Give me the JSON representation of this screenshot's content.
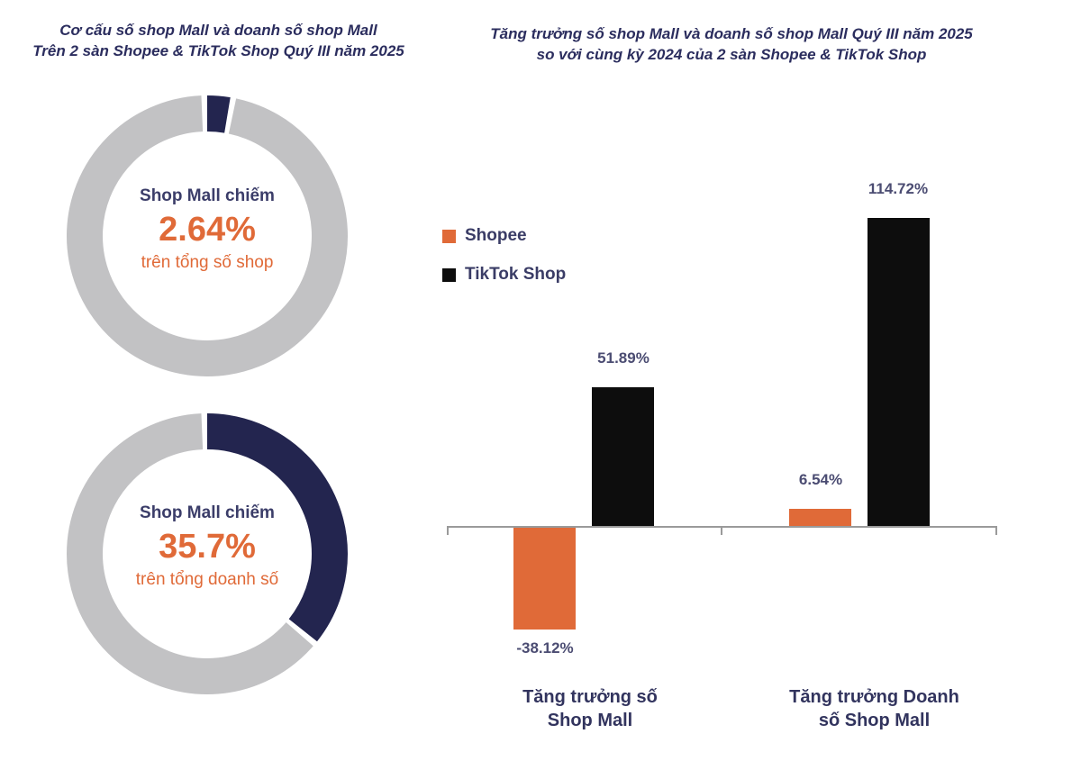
{
  "colors": {
    "accent_orange": "#E06A38",
    "navy_slice": "#23254F",
    "gray_ring": "#C2C2C4",
    "bar_black": "#0D0D0D",
    "title_navy": "#2B2D5E",
    "axis_gray": "#9A9A9A"
  },
  "left_chart": {
    "title": [
      "Cơ cấu số shop Mall và doanh số shop Mall",
      "Trên 2 sàn Shopee & TikTok Shop Quý III năm 2025"
    ]
  },
  "right_chart": {
    "title": [
      "Tăng trưởng số shop Mall và doanh số shop Mall Quý III năm 2025",
      "so với cùng kỳ 2024 của 2 sàn Shopee & TikTok Shop"
    ],
    "legend": [
      {
        "name": "Shopee",
        "color": "#E06A38"
      },
      {
        "name": "TikTok Shop",
        "color": "#0D0D0D"
      }
    ]
  },
  "chart_data": [
    {
      "type": "pie",
      "subtype": "donut",
      "title": "Cơ cấu số shop Mall và doanh số shop Mall Trên 2 sàn Shopee & TikTok Shop Quý III năm 2025",
      "center_label_top": "Shop Mall chiếm",
      "center_value": "2.64%",
      "center_label_bottom": "trên tổng số shop",
      "slices": [
        {
          "name": "Shop Mall",
          "value": 2.64,
          "color": "#23254F"
        },
        {
          "name": "remainder",
          "value": 97.36,
          "color": "#C2C2C4"
        }
      ],
      "start_angle_deg": 0,
      "direction": "clockwise"
    },
    {
      "type": "pie",
      "subtype": "donut",
      "title": "Cơ cấu doanh số shop Mall trên 2 sàn Shopee & TikTok Shop Quý III năm 2025",
      "center_label_top": "Shop Mall chiếm",
      "center_value": "35.7%",
      "center_label_bottom": "trên tổng doanh số",
      "slices": [
        {
          "name": "Shop Mall",
          "value": 35.7,
          "color": "#23254F"
        },
        {
          "name": "remainder",
          "value": 64.3,
          "color": "#C2C2C4"
        }
      ],
      "start_angle_deg": 0,
      "direction": "clockwise"
    },
    {
      "type": "bar",
      "title": "Tăng trưởng số shop Mall và doanh số shop Mall Quý III năm 2025 so với cùng kỳ 2024 của 2 sàn Shopee & TikTok Shop",
      "categories": [
        "Tăng trưởng số Shop Mall",
        "Tăng trưởng Doanh số Shop Mall"
      ],
      "cat_lines": [
        [
          "Tăng trưởng số",
          "Shop Mall"
        ],
        [
          "Tăng trưởng Doanh",
          "số Shop Mall"
        ]
      ],
      "series": [
        {
          "name": "Shopee",
          "color": "#E06A38",
          "values": [
            -38.12,
            6.54
          ],
          "labels": [
            "-38.12%",
            "6.54%"
          ]
        },
        {
          "name": "TikTok Shop",
          "color": "#0D0D0D",
          "values": [
            51.89,
            114.72
          ],
          "labels": [
            "51.89%",
            "114.72%"
          ]
        }
      ],
      "ylim": [
        -50,
        125
      ],
      "grid": false,
      "legend_position": "left",
      "baseline": 0
    }
  ]
}
